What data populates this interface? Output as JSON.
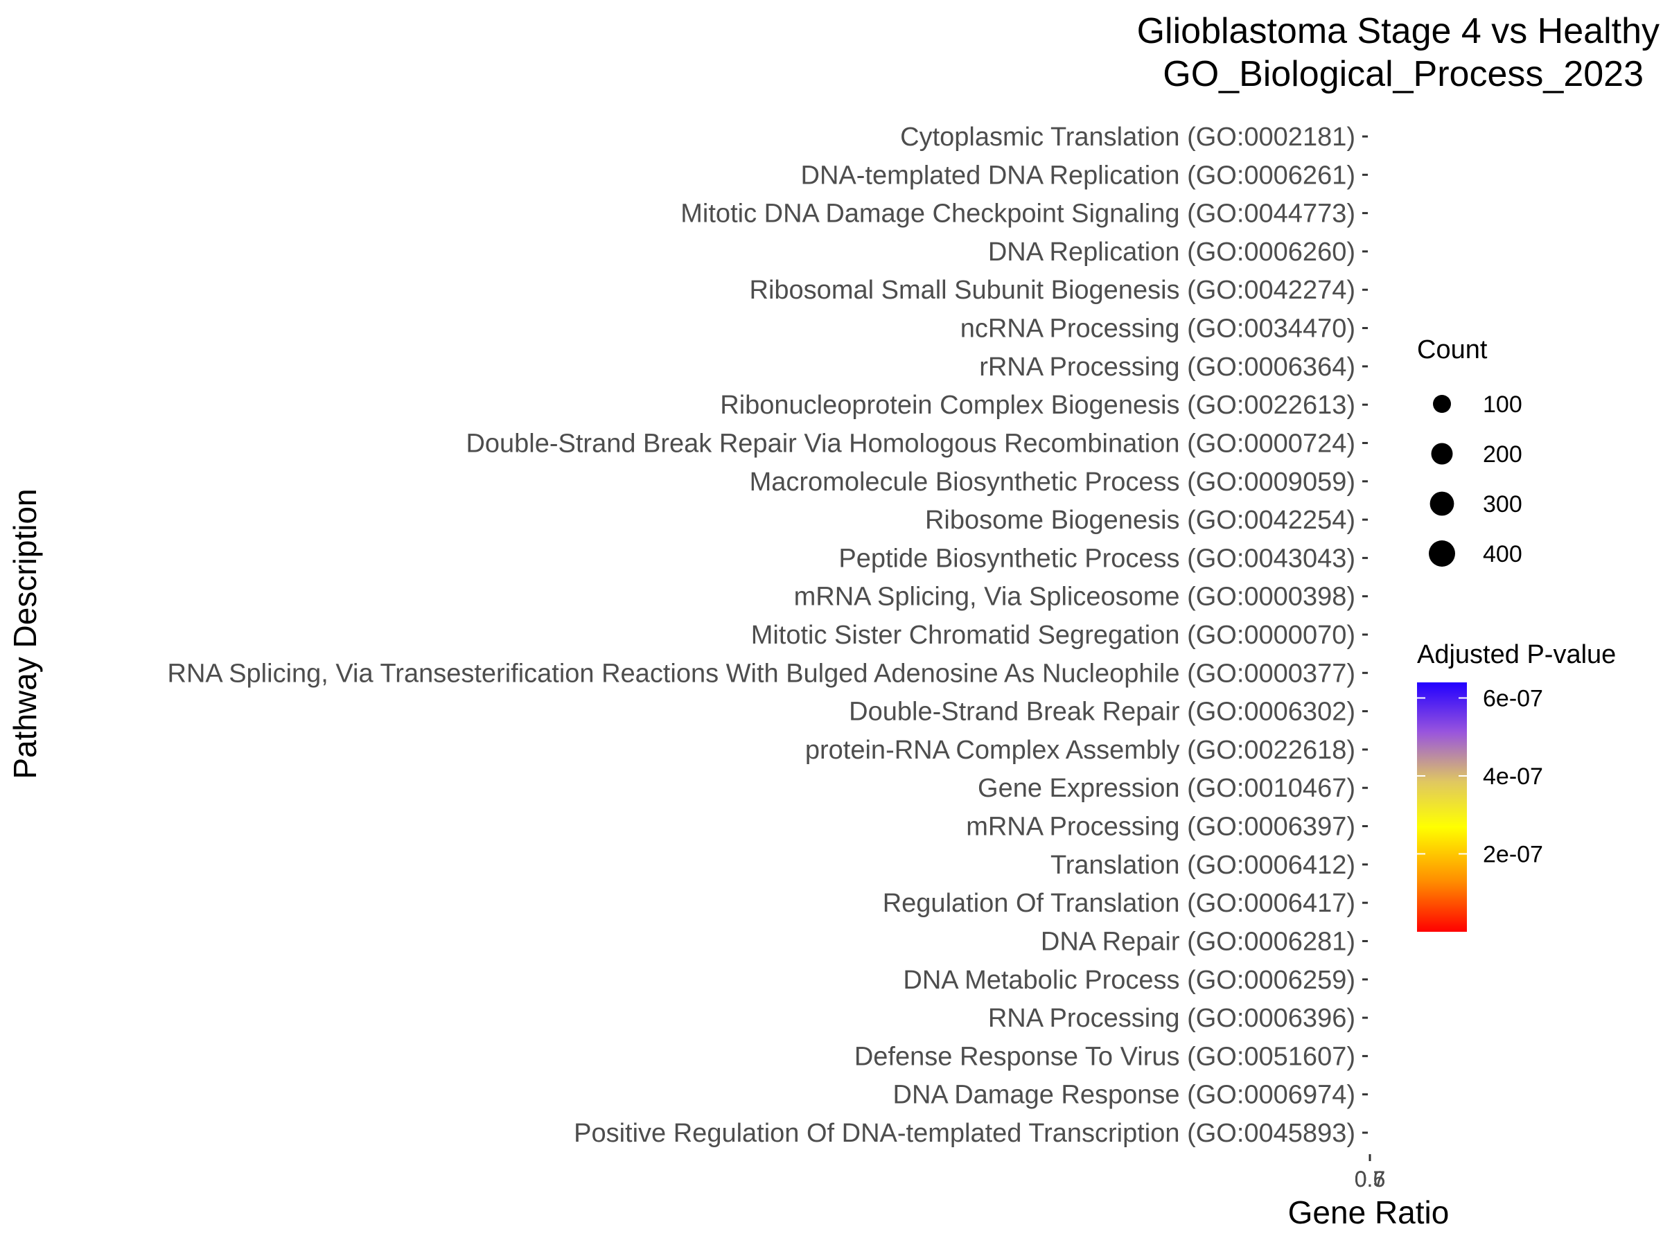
{
  "chart_data": {
    "type": "scatter",
    "title": "Glioblastoma Stage 4 vs Healthy",
    "subtitle": "GO_Biological_Process_2023",
    "xlabel": "Gene Ratio",
    "ylabel": "Pathway Description",
    "x_tick_labels": [
      "0.5",
      "0.6",
      "0.7"
    ],
    "categories": [
      "Cytoplasmic Translation (GO:0002181)",
      "DNA-templated DNA Replication (GO:0006261)",
      "Mitotic DNA Damage Checkpoint Signaling (GO:0044773)",
      "DNA Replication (GO:0006260)",
      "Ribosomal Small Subunit Biogenesis (GO:0042274)",
      "ncRNA Processing (GO:0034470)",
      "rRNA Processing (GO:0006364)",
      "Ribonucleoprotein Complex Biogenesis (GO:0022613)",
      "Double-Strand Break Repair Via Homologous Recombination (GO:0000724)",
      "Macromolecule Biosynthetic Process (GO:0009059)",
      "Ribosome Biogenesis (GO:0042254)",
      "Peptide Biosynthetic Process (GO:0043043)",
      "mRNA Splicing, Via Spliceosome (GO:0000398)",
      "Mitotic Sister Chromatid Segregation (GO:0000070)",
      "RNA Splicing, Via Transesterification Reactions With Bulged Adenosine As Nucleophile (GO:0000377)",
      "Double-Strand Break Repair (GO:0006302)",
      "protein-RNA Complex Assembly (GO:0022618)",
      "Gene Expression (GO:0010467)",
      "mRNA Processing (GO:0006397)",
      "Translation (GO:0006412)",
      "Regulation Of Translation (GO:0006417)",
      "DNA Repair (GO:0006281)",
      "DNA Metabolic Process (GO:0006259)",
      "RNA Processing (GO:0006396)",
      "Defense Response To Virus (GO:0051607)",
      "DNA Damage Response (GO:0006974)",
      "Positive Regulation Of DNA-templated Transcription (GO:0045893)"
    ],
    "legend": {
      "size": {
        "title": "Count",
        "values": [
          100,
          200,
          300,
          400
        ],
        "labels": [
          "100",
          "200",
          "300",
          "400"
        ]
      },
      "color": {
        "title": "Adjusted P-value",
        "tick_labels": [
          "6e-07",
          "4e-07",
          "2e-07"
        ],
        "tick_values": [
          6e-07,
          4e-07,
          2e-07
        ],
        "range": [
          0,
          6.4e-07
        ],
        "colors": [
          "#ff0000",
          "#ff8c00",
          "#ffff00",
          "#e0c860",
          "#9955dd",
          "#2200ff"
        ]
      },
      "placement": "right"
    },
    "grid": false
  }
}
